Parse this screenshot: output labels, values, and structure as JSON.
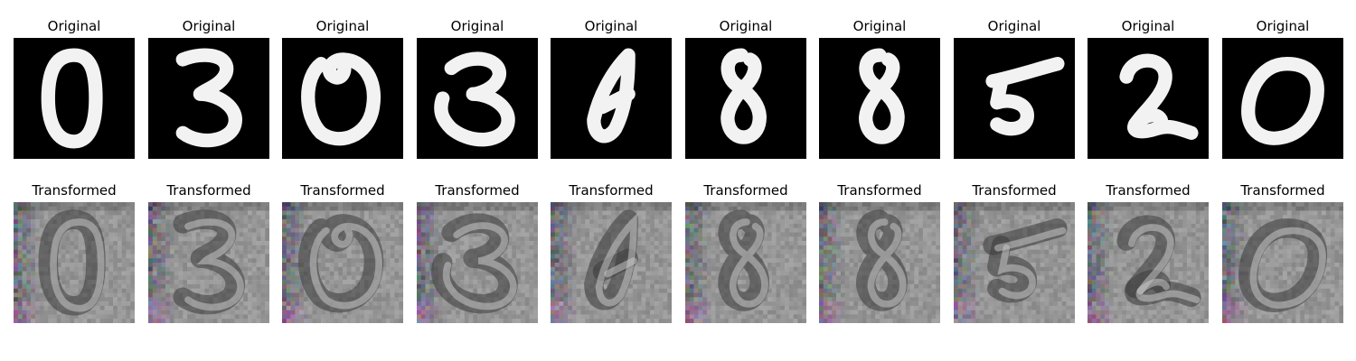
{
  "rows": [
    {
      "title": "Original",
      "tiles": [
        {
          "digit": "0"
        },
        {
          "digit": "3"
        },
        {
          "digit": "0"
        },
        {
          "digit": "3"
        },
        {
          "digit": "4"
        },
        {
          "digit": "8"
        },
        {
          "digit": "8"
        },
        {
          "digit": "5"
        },
        {
          "digit": "2"
        },
        {
          "digit": "0"
        }
      ]
    },
    {
      "title": "Transformed",
      "tiles": [
        {
          "digit": "0"
        },
        {
          "digit": "3"
        },
        {
          "digit": "0"
        },
        {
          "digit": "3"
        },
        {
          "digit": "4"
        },
        {
          "digit": "8"
        },
        {
          "digit": "8"
        },
        {
          "digit": "5"
        },
        {
          "digit": "2"
        },
        {
          "digit": "0"
        }
      ]
    }
  ]
}
